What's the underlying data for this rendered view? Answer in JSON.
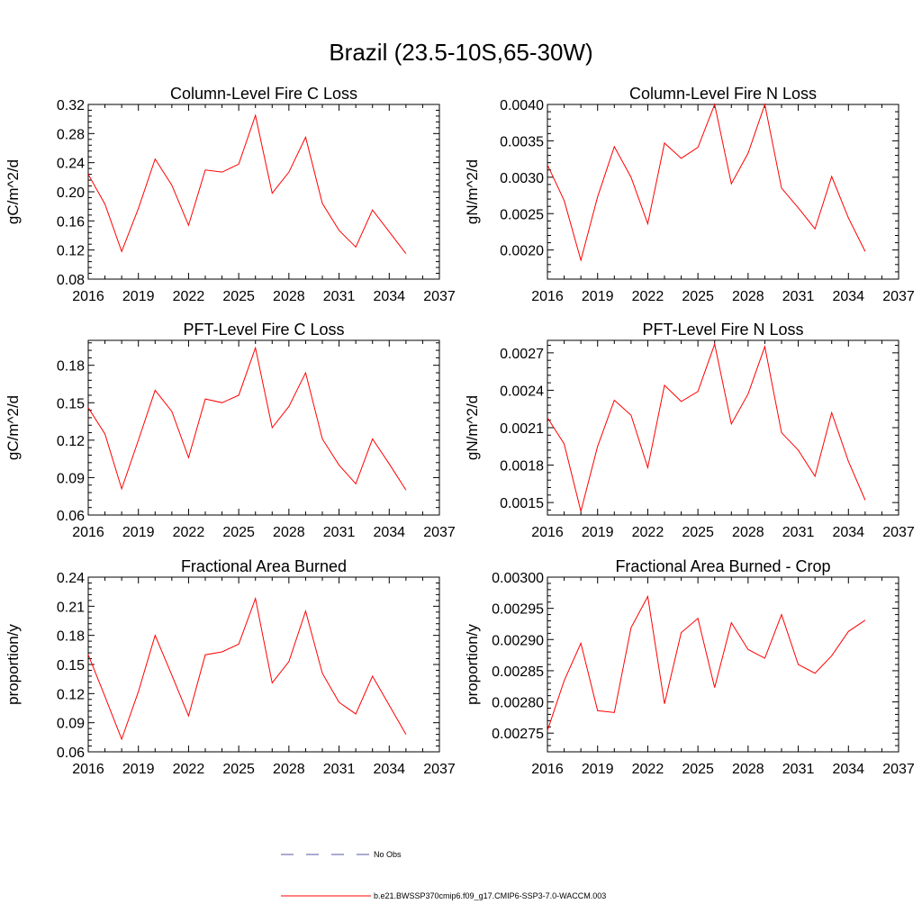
{
  "figure_title": "Brazil (23.5-10S,65-30W)",
  "colors": {
    "model_line": "#ff0000",
    "obs_line": "#5555aa",
    "axis": "#000000"
  },
  "legend": {
    "obs_label": "No Obs",
    "model_label": "b.e21.BWSSP370cmip6.f09_g17.CMIP6-SSP3-7.0-WACCM.003"
  },
  "chart_data": [
    {
      "type": "line",
      "title": "Column-Level Fire C Loss",
      "xlabel": "",
      "ylabel": "gC/m^2/d",
      "xlim": [
        2016,
        2037
      ],
      "xticks": [
        2016,
        2019,
        2022,
        2025,
        2028,
        2031,
        2034,
        2037
      ],
      "ylim": [
        0.08,
        0.32
      ],
      "yticks": [
        "0.08",
        "0.12",
        "0.16",
        "0.20",
        "0.24",
        "0.28",
        "0.32"
      ],
      "x": [
        2016,
        2017,
        2018,
        2019,
        2020,
        2021,
        2022,
        2023,
        2024,
        2025,
        2026,
        2027,
        2028,
        2029,
        2030,
        2031,
        2032,
        2033,
        2034,
        2035
      ],
      "series": [
        {
          "name": "b.e21.BWSSP370cmip6.f09_g17.CMIP6-SSP3-7.0-WACCM.003",
          "values": [
            0.224,
            0.183,
            0.118,
            0.177,
            0.245,
            0.209,
            0.154,
            0.23,
            0.227,
            0.238,
            0.305,
            0.198,
            0.227,
            0.275,
            0.184,
            0.147,
            0.124,
            0.175,
            0.145,
            0.115
          ]
        }
      ]
    },
    {
      "type": "line",
      "title": "Column-Level Fire N Loss",
      "xlabel": "",
      "ylabel": "gN/m^2/d",
      "xlim": [
        2016,
        2037
      ],
      "xticks": [
        2016,
        2019,
        2022,
        2025,
        2028,
        2031,
        2034,
        2037
      ],
      "ylim": [
        0.0016,
        0.004
      ],
      "yticks": [
        "0.0020",
        "0.0025",
        "0.0030",
        "0.0035",
        "0.0040"
      ],
      "x": [
        2016,
        2017,
        2018,
        2019,
        2020,
        2021,
        2022,
        2023,
        2024,
        2025,
        2026,
        2027,
        2028,
        2029,
        2030,
        2031,
        2032,
        2033,
        2034,
        2035
      ],
      "series": [
        {
          "name": "b.e21.BWSSP370cmip6.f09_g17.CMIP6-SSP3-7.0-WACCM.003",
          "values": [
            0.00317,
            0.00268,
            0.00186,
            0.00273,
            0.00342,
            0.003,
            0.00236,
            0.00347,
            0.00326,
            0.00341,
            0.004,
            0.00291,
            0.00333,
            0.004,
            0.00285,
            0.00258,
            0.00229,
            0.00301,
            0.00244,
            0.00198
          ]
        }
      ]
    },
    {
      "type": "line",
      "title": "PFT-Level Fire C Loss",
      "xlabel": "",
      "ylabel": "gC/m^2/d",
      "xlim": [
        2016,
        2037
      ],
      "xticks": [
        2016,
        2019,
        2022,
        2025,
        2028,
        2031,
        2034,
        2037
      ],
      "ylim": [
        0.06,
        0.2
      ],
      "yticks": [
        "0.06",
        "0.09",
        "0.12",
        "0.15",
        "0.18"
      ],
      "x": [
        2016,
        2017,
        2018,
        2019,
        2020,
        2021,
        2022,
        2023,
        2024,
        2025,
        2026,
        2027,
        2028,
        2029,
        2030,
        2031,
        2032,
        2033,
        2034,
        2035
      ],
      "series": [
        {
          "name": "b.e21.BWSSP370cmip6.f09_g17.CMIP6-SSP3-7.0-WACCM.003",
          "values": [
            0.146,
            0.125,
            0.081,
            0.12,
            0.16,
            0.143,
            0.106,
            0.153,
            0.15,
            0.156,
            0.194,
            0.13,
            0.147,
            0.174,
            0.121,
            0.1,
            0.085,
            0.121,
            0.101,
            0.08
          ]
        }
      ]
    },
    {
      "type": "line",
      "title": "PFT-Level Fire N Loss",
      "xlabel": "",
      "ylabel": "gN/m^2/d",
      "xlim": [
        2016,
        2037
      ],
      "xticks": [
        2016,
        2019,
        2022,
        2025,
        2028,
        2031,
        2034,
        2037
      ],
      "ylim": [
        0.0014,
        0.0028
      ],
      "yticks": [
        "0.0015",
        "0.0018",
        "0.0021",
        "0.0024",
        "0.0027"
      ],
      "x": [
        2016,
        2017,
        2018,
        2019,
        2020,
        2021,
        2022,
        2023,
        2024,
        2025,
        2026,
        2027,
        2028,
        2029,
        2030,
        2031,
        2032,
        2033,
        2034,
        2035
      ],
      "series": [
        {
          "name": "b.e21.BWSSP370cmip6.f09_g17.CMIP6-SSP3-7.0-WACCM.003",
          "values": [
            0.00218,
            0.00197,
            0.00143,
            0.00195,
            0.00232,
            0.0022,
            0.00178,
            0.00244,
            0.00231,
            0.00239,
            0.00277,
            0.00213,
            0.00237,
            0.00275,
            0.00206,
            0.00192,
            0.00171,
            0.00222,
            0.00183,
            0.00152
          ]
        }
      ]
    },
    {
      "type": "line",
      "title": "Fractional Area Burned",
      "xlabel": "",
      "ylabel": "proportion/y",
      "xlim": [
        2016,
        2037
      ],
      "xticks": [
        2016,
        2019,
        2022,
        2025,
        2028,
        2031,
        2034,
        2037
      ],
      "ylim": [
        0.06,
        0.24
      ],
      "yticks": [
        "0.06",
        "0.09",
        "0.12",
        "0.15",
        "0.18",
        "0.21",
        "0.24"
      ],
      "x": [
        2016,
        2017,
        2018,
        2019,
        2020,
        2021,
        2022,
        2023,
        2024,
        2025,
        2026,
        2027,
        2028,
        2029,
        2030,
        2031,
        2032,
        2033,
        2034,
        2035
      ],
      "series": [
        {
          "name": "b.e21.BWSSP370cmip6.f09_g17.CMIP6-SSP3-7.0-WACCM.003",
          "values": [
            0.16,
            0.117,
            0.073,
            0.122,
            0.18,
            0.139,
            0.097,
            0.16,
            0.163,
            0.171,
            0.218,
            0.131,
            0.153,
            0.205,
            0.141,
            0.111,
            0.099,
            0.138,
            0.108,
            0.078
          ]
        }
      ]
    },
    {
      "type": "line",
      "title": "Fractional Area Burned - Crop",
      "xlabel": "",
      "ylabel": "proportion/y",
      "xlim": [
        2016,
        2037
      ],
      "xticks": [
        2016,
        2019,
        2022,
        2025,
        2028,
        2031,
        2034,
        2037
      ],
      "ylim": [
        0.00272,
        0.003
      ],
      "yticks": [
        "0.00275",
        "0.00280",
        "0.00285",
        "0.00290",
        "0.00295",
        "0.00300"
      ],
      "x": [
        2016,
        2017,
        2018,
        2019,
        2020,
        2021,
        2022,
        2023,
        2024,
        2025,
        2026,
        2027,
        2028,
        2029,
        2030,
        2031,
        2032,
        2033,
        2034,
        2035
      ],
      "series": [
        {
          "name": "b.e21.BWSSP370cmip6.f09_g17.CMIP6-SSP3-7.0-WACCM.003",
          "values": [
            0.002754,
            0.002834,
            0.002894,
            0.002786,
            0.002783,
            0.002919,
            0.002969,
            0.002797,
            0.002911,
            0.002934,
            0.002823,
            0.002927,
            0.002884,
            0.00287,
            0.00294,
            0.00286,
            0.002846,
            0.002874,
            0.002913,
            0.002931
          ]
        }
      ]
    }
  ]
}
